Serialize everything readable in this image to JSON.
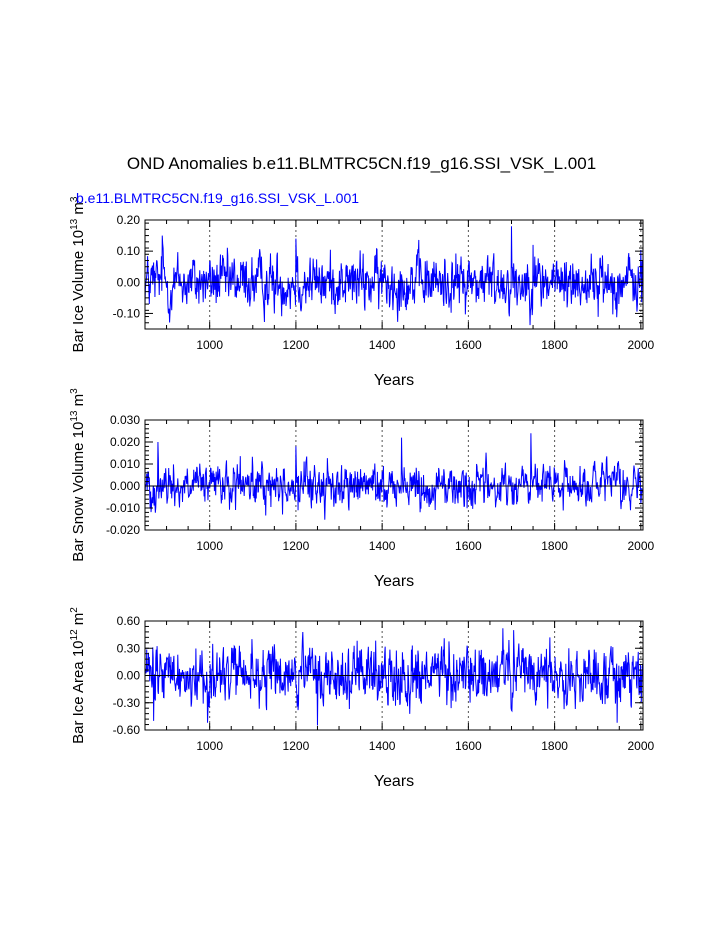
{
  "title": "OND Anomalies b.e11.BLMTRC5CN.f19_g16.SSI_VSK_L.001",
  "subtitle": "b.e11.BLMTRC5CN.f19_g16.SSI_VSK_L.001",
  "colors": {
    "series": "#0000ff",
    "axis": "#000000",
    "grid": "#555555"
  },
  "chart_data": [
    {
      "type": "line",
      "xlabel": "Years",
      "ylabel": "Bar Ice Volume 10",
      "ylabel_sup": "13",
      "ylabel_unit": "m",
      "ylabel_unit_sup": "3",
      "xlim": [
        850,
        2005
      ],
      "ylim": [
        -0.15,
        0.2
      ],
      "xticks": [
        1000,
        1200,
        1400,
        1600,
        1800,
        2000
      ],
      "ytick_values": [
        -0.1,
        0.0,
        0.1,
        0.2
      ],
      "ytick_labels": [
        "-0.10",
        "0.00",
        "0.10",
        "0.20"
      ],
      "vertical_grid": true,
      "amplitude": 0.04,
      "peaks": [
        [
          890,
          0.15
        ],
        [
          1200,
          0.14
        ],
        [
          1700,
          0.18
        ],
        [
          1750,
          0.12
        ],
        [
          1150,
          -0.1
        ],
        [
          905,
          -0.1
        ]
      ],
      "series": [
        {
          "name": "",
          "color": "#0000ff"
        }
      ]
    },
    {
      "type": "line",
      "xlabel": "Years",
      "ylabel": "Bar Snow Volume 10",
      "ylabel_sup": "13",
      "ylabel_unit": "m",
      "ylabel_unit_sup": "3",
      "xlim": [
        850,
        2005
      ],
      "ylim": [
        -0.02,
        0.03
      ],
      "xticks": [
        1000,
        1200,
        1400,
        1600,
        1800,
        2000
      ],
      "ytick_values": [
        -0.02,
        -0.01,
        0.0,
        0.01,
        0.02,
        0.03
      ],
      "ytick_labels": [
        "-0.020",
        "-0.010",
        "0.000",
        "0.010",
        "0.020",
        "0.030"
      ],
      "vertical_grid": true,
      "amplitude": 0.0045,
      "peaks": [
        [
          880,
          0.02
        ],
        [
          1445,
          0.022
        ],
        [
          1745,
          0.024
        ],
        [
          1200,
          0.018
        ],
        [
          1205,
          -0.011
        ]
      ],
      "series": [
        {
          "name": "",
          "color": "#0000ff"
        }
      ]
    },
    {
      "type": "line",
      "xlabel": "Years",
      "ylabel": "Bar Ice Area 10",
      "ylabel_sup": "12",
      "ylabel_unit": "m",
      "ylabel_unit_sup": "2",
      "xlim": [
        850,
        2005
      ],
      "ylim": [
        -0.6,
        0.6
      ],
      "xticks": [
        1000,
        1200,
        1400,
        1600,
        1800,
        2000
      ],
      "ytick_values": [
        -0.6,
        -0.3,
        0.0,
        0.3,
        0.6
      ],
      "ytick_labels": [
        "-0.60",
        "-0.30",
        "0.00",
        "0.30",
        "0.60"
      ],
      "vertical_grid": true,
      "amplitude": 0.15,
      "peaks": [
        [
          1680,
          0.52
        ],
        [
          1705,
          0.5
        ],
        [
          1250,
          -0.55
        ],
        [
          995,
          -0.52
        ],
        [
          1945,
          -0.52
        ],
        [
          870,
          -0.5
        ]
      ],
      "series": [
        {
          "name": "",
          "color": "#0000ff"
        }
      ]
    }
  ]
}
